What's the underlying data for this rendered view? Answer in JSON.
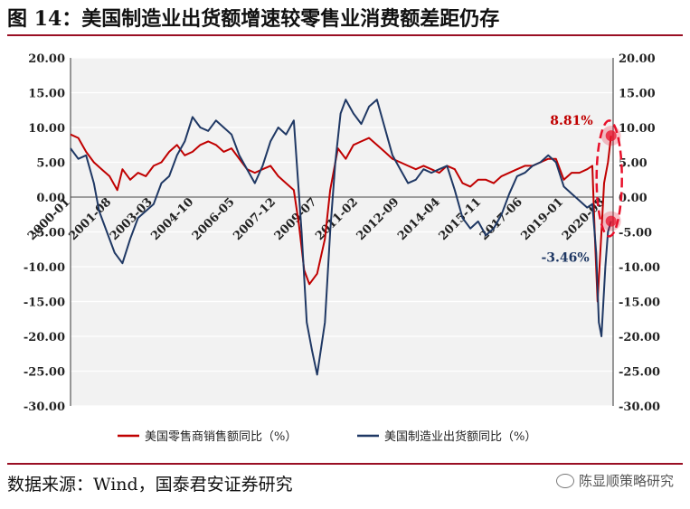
{
  "header": {
    "title": "图 14：美国制造业出货额增速较零售业消费额差距仍存"
  },
  "footer": {
    "source": "数据来源：Wind，国泰君安证券研究",
    "watermark": "陈显顺策略研究"
  },
  "colors": {
    "retail": "#c00000",
    "manufacturing": "#1f3864",
    "highlight": "#e8102a"
  },
  "chart_data": {
    "type": "line",
    "title": "美国制造业出货额增速较零售业消费额差距仍存",
    "ylim": [
      -30,
      20
    ],
    "y_ticks": [
      "20.00",
      "15.00",
      "10.00",
      "5.00",
      "0.00",
      "-5.00",
      "-10.00",
      "-15.00",
      "-20.00",
      "-25.00",
      "-30.00"
    ],
    "y_ticks_right": [
      "20.00",
      "15.00",
      "10.00",
      "5.00",
      "0.00",
      "-5.00",
      "-10.00",
      "-15.00",
      "-20.00",
      "-25.00",
      "-30.00"
    ],
    "x_range": [
      "2000-01",
      "2020-11"
    ],
    "x_ticks": [
      "2000-01",
      "2001-08",
      "2003-03",
      "2004-10",
      "2006-05",
      "2007-12",
      "2009-07",
      "2011-02",
      "2012-09",
      "2014-04",
      "2015-11",
      "2017-06",
      "2019-01",
      "2020-08"
    ],
    "legend": [
      "美国零售商销售额同比（%）",
      "美国制造业出货额同比（%）"
    ],
    "annotations": [
      {
        "text": "8.81%",
        "x": 2020.82,
        "y": 8.81,
        "series": "retail"
      },
      {
        "text": "-3.46%",
        "x": 2020.82,
        "y": -3.46,
        "series": "manufacturing"
      }
    ],
    "series": [
      {
        "name": "美国零售商销售额同比（%）",
        "points": [
          [
            2000.0,
            9.0
          ],
          [
            2000.3,
            8.5
          ],
          [
            2000.6,
            6.5
          ],
          [
            2000.9,
            5.0
          ],
          [
            2001.2,
            4.0
          ],
          [
            2001.5,
            3.0
          ],
          [
            2001.8,
            1.0
          ],
          [
            2002.0,
            4.0
          ],
          [
            2002.3,
            2.5
          ],
          [
            2002.6,
            3.5
          ],
          [
            2002.9,
            3.0
          ],
          [
            2003.2,
            4.5
          ],
          [
            2003.5,
            5.0
          ],
          [
            2003.8,
            6.5
          ],
          [
            2004.1,
            7.5
          ],
          [
            2004.4,
            6.0
          ],
          [
            2004.7,
            6.5
          ],
          [
            2005.0,
            7.5
          ],
          [
            2005.3,
            8.0
          ],
          [
            2005.6,
            7.5
          ],
          [
            2005.9,
            6.5
          ],
          [
            2006.2,
            7.0
          ],
          [
            2006.5,
            5.5
          ],
          [
            2006.8,
            4.0
          ],
          [
            2007.1,
            3.5
          ],
          [
            2007.4,
            4.0
          ],
          [
            2007.7,
            4.5
          ],
          [
            2008.0,
            3.0
          ],
          [
            2008.3,
            2.0
          ],
          [
            2008.6,
            1.0
          ],
          [
            2008.8,
            -4.0
          ],
          [
            2009.0,
            -10.5
          ],
          [
            2009.2,
            -12.5
          ],
          [
            2009.5,
            -11.0
          ],
          [
            2009.8,
            -6.0
          ],
          [
            2010.0,
            1.0
          ],
          [
            2010.3,
            7.0
          ],
          [
            2010.6,
            5.5
          ],
          [
            2010.9,
            7.5
          ],
          [
            2011.2,
            8.0
          ],
          [
            2011.5,
            8.5
          ],
          [
            2011.8,
            7.5
          ],
          [
            2012.1,
            6.5
          ],
          [
            2012.4,
            5.5
          ],
          [
            2012.7,
            5.0
          ],
          [
            2013.0,
            4.5
          ],
          [
            2013.3,
            4.0
          ],
          [
            2013.6,
            4.5
          ],
          [
            2013.9,
            4.0
          ],
          [
            2014.2,
            3.5
          ],
          [
            2014.5,
            4.5
          ],
          [
            2014.8,
            4.0
          ],
          [
            2015.1,
            2.0
          ],
          [
            2015.4,
            1.5
          ],
          [
            2015.7,
            2.5
          ],
          [
            2016.0,
            2.5
          ],
          [
            2016.3,
            2.0
          ],
          [
            2016.6,
            3.0
          ],
          [
            2016.9,
            3.5
          ],
          [
            2017.2,
            4.0
          ],
          [
            2017.5,
            4.5
          ],
          [
            2017.8,
            4.5
          ],
          [
            2018.1,
            5.0
          ],
          [
            2018.4,
            5.5
          ],
          [
            2018.7,
            5.5
          ],
          [
            2019.0,
            2.5
          ],
          [
            2019.3,
            3.5
          ],
          [
            2019.6,
            3.5
          ],
          [
            2019.9,
            4.0
          ],
          [
            2020.1,
            4.5
          ],
          [
            2020.2,
            -6.0
          ],
          [
            2020.3,
            -15.0
          ],
          [
            2020.45,
            -5.0
          ],
          [
            2020.55,
            2.0
          ],
          [
            2020.7,
            5.0
          ],
          [
            2020.82,
            8.81
          ]
        ]
      },
      {
        "name": "美国制造业出货额同比（%）",
        "points": [
          [
            2000.0,
            7.0
          ],
          [
            2000.3,
            5.5
          ],
          [
            2000.6,
            6.0
          ],
          [
            2000.9,
            2.0
          ],
          [
            2001.1,
            -2.0
          ],
          [
            2001.4,
            -5.0
          ],
          [
            2001.7,
            -8.0
          ],
          [
            2002.0,
            -9.5
          ],
          [
            2002.3,
            -6.0
          ],
          [
            2002.6,
            -3.0
          ],
          [
            2002.9,
            -2.0
          ],
          [
            2003.2,
            -1.0
          ],
          [
            2003.5,
            2.0
          ],
          [
            2003.8,
            3.0
          ],
          [
            2004.1,
            6.0
          ],
          [
            2004.4,
            8.0
          ],
          [
            2004.7,
            11.5
          ],
          [
            2005.0,
            10.0
          ],
          [
            2005.3,
            9.5
          ],
          [
            2005.6,
            11.0
          ],
          [
            2005.9,
            10.0
          ],
          [
            2006.2,
            9.0
          ],
          [
            2006.5,
            6.0
          ],
          [
            2006.8,
            4.0
          ],
          [
            2007.1,
            2.0
          ],
          [
            2007.4,
            4.5
          ],
          [
            2007.7,
            8.0
          ],
          [
            2008.0,
            10.0
          ],
          [
            2008.3,
            9.0
          ],
          [
            2008.6,
            11.0
          ],
          [
            2008.9,
            -5.0
          ],
          [
            2009.1,
            -18.0
          ],
          [
            2009.3,
            -22.0
          ],
          [
            2009.5,
            -25.5
          ],
          [
            2009.8,
            -18.0
          ],
          [
            2010.0,
            -5.0
          ],
          [
            2010.2,
            5.0
          ],
          [
            2010.4,
            12.0
          ],
          [
            2010.6,
            14.0
          ],
          [
            2010.9,
            12.0
          ],
          [
            2011.2,
            10.5
          ],
          [
            2011.5,
            13.0
          ],
          [
            2011.8,
            14.0
          ],
          [
            2012.1,
            10.0
          ],
          [
            2012.4,
            6.0
          ],
          [
            2012.7,
            4.0
          ],
          [
            2013.0,
            2.0
          ],
          [
            2013.3,
            2.5
          ],
          [
            2013.6,
            4.0
          ],
          [
            2013.9,
            3.5
          ],
          [
            2014.2,
            4.0
          ],
          [
            2014.5,
            4.5
          ],
          [
            2014.8,
            1.0
          ],
          [
            2015.1,
            -3.0
          ],
          [
            2015.4,
            -4.5
          ],
          [
            2015.7,
            -3.5
          ],
          [
            2016.0,
            -5.5
          ],
          [
            2016.3,
            -4.5
          ],
          [
            2016.6,
            -2.5
          ],
          [
            2016.9,
            0.5
          ],
          [
            2017.2,
            3.0
          ],
          [
            2017.5,
            3.5
          ],
          [
            2017.8,
            4.5
          ],
          [
            2018.1,
            5.0
          ],
          [
            2018.4,
            6.0
          ],
          [
            2018.7,
            5.0
          ],
          [
            2019.0,
            1.5
          ],
          [
            2019.3,
            0.5
          ],
          [
            2019.6,
            -0.5
          ],
          [
            2019.9,
            -1.5
          ],
          [
            2020.1,
            -1.0
          ],
          [
            2020.25,
            -8.0
          ],
          [
            2020.35,
            -18.0
          ],
          [
            2020.45,
            -20.0
          ],
          [
            2020.6,
            -10.0
          ],
          [
            2020.7,
            -5.0
          ],
          [
            2020.82,
            -3.46
          ]
        ]
      }
    ]
  }
}
